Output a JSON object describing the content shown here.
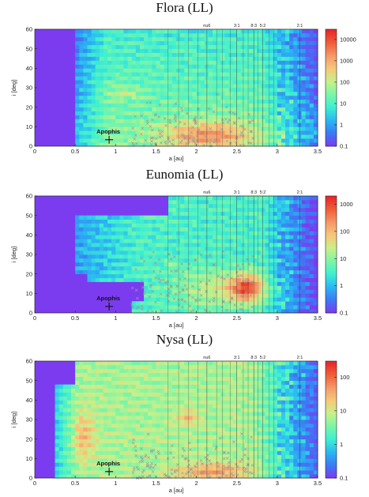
{
  "colors": {
    "background": "#7b3cf0",
    "colorscale": [
      "#7b3cf0",
      "#3a7cf5",
      "#2ab9f2",
      "#3ef0d2",
      "#7cf5a6",
      "#c8f08a",
      "#f5c97a",
      "#f59a6a",
      "#f0603a",
      "#e8282a"
    ],
    "resonance_line": "#333333",
    "marker": "#999999"
  },
  "chart_data": [
    {
      "type": "heatmap",
      "title": "Flora (LL)",
      "xlabel": "a [au]",
      "ylabel": "i [deg]",
      "xlim": [
        0,
        3.5
      ],
      "ylim": [
        0,
        60
      ],
      "xticks": [
        "0",
        "0.5",
        "1",
        "1.5",
        "2",
        "2.5",
        "3",
        "3.5"
      ],
      "yticks": [
        "0",
        "10",
        "20",
        "30",
        "40",
        "50",
        "60"
      ],
      "colorbar": {
        "scale": "log",
        "ticks": [
          "0.1",
          "1",
          "10",
          "100",
          "1000",
          "10000"
        ],
        "min": 0.1,
        "max": 30000
      },
      "resonances": [
        {
          "label": "nu6",
          "a": 2.13
        },
        {
          "label": "3:1",
          "a": 2.5
        },
        {
          "label": "8:3",
          "a": 2.71
        },
        {
          "label": "5:2",
          "a": 2.82
        },
        {
          "label": "2:1",
          "a": 3.28
        }
      ],
      "annotation": {
        "label": "Apophis",
        "a": 0.92,
        "i": 3.3
      },
      "source": {
        "a": 2.2,
        "i": 5.5
      },
      "hotspot": {
        "a": 1.1,
        "i": 27
      }
    },
    {
      "type": "heatmap",
      "title": "Eunomia (LL)",
      "xlabel": "a [au]",
      "ylabel": "i [deg]",
      "xlim": [
        0,
        3.5
      ],
      "ylim": [
        0,
        60
      ],
      "xticks": [
        "0",
        "0.5",
        "1",
        "1.5",
        "2",
        "2.5",
        "3",
        "3.5"
      ],
      "yticks": [
        "0",
        "10",
        "20",
        "30",
        "40",
        "50",
        "60"
      ],
      "colorbar": {
        "scale": "log",
        "ticks": [
          "0.1",
          "1",
          "10",
          "100",
          "1000"
        ],
        "min": 0.1,
        "max": 2000
      },
      "resonances": [
        {
          "label": "nu6",
          "a": 2.13
        },
        {
          "label": "3:1",
          "a": 2.5
        },
        {
          "label": "8:3",
          "a": 2.71
        },
        {
          "label": "5:2",
          "a": 2.82
        },
        {
          "label": "2:1",
          "a": 3.28
        }
      ],
      "annotation": {
        "label": "Apophis",
        "a": 0.92,
        "i": 3.3
      },
      "source": {
        "a": 2.65,
        "i": 13
      },
      "hotspot": {
        "a": 1.68,
        "i": 25
      }
    },
    {
      "type": "heatmap",
      "title": "Nysa (LL)",
      "xlabel": "a [au]",
      "ylabel": "i [deg]",
      "xlim": [
        0,
        3.5
      ],
      "ylim": [
        0,
        60
      ],
      "xticks": [
        "0",
        "0.5",
        "1",
        "1.5",
        "2",
        "2.5",
        "3",
        "3.5"
      ],
      "yticks": [
        "0",
        "10",
        "20",
        "30",
        "40",
        "50",
        "60"
      ],
      "colorbar": {
        "scale": "log",
        "ticks": [
          "0.1",
          "1",
          "10",
          "100"
        ],
        "min": 0.1,
        "max": 300
      },
      "resonances": [
        {
          "label": "nu6",
          "a": 2.13
        },
        {
          "label": "3:1",
          "a": 2.5
        },
        {
          "label": "8:3",
          "a": 2.71
        },
        {
          "label": "5:2",
          "a": 2.82
        },
        {
          "label": "2:1",
          "a": 3.28
        }
      ],
      "annotation": {
        "label": "Apophis",
        "a": 0.92,
        "i": 3.3
      },
      "source": {
        "a": 2.3,
        "i": 3
      },
      "hotspot": {
        "a": 1.9,
        "i": 31
      }
    }
  ]
}
